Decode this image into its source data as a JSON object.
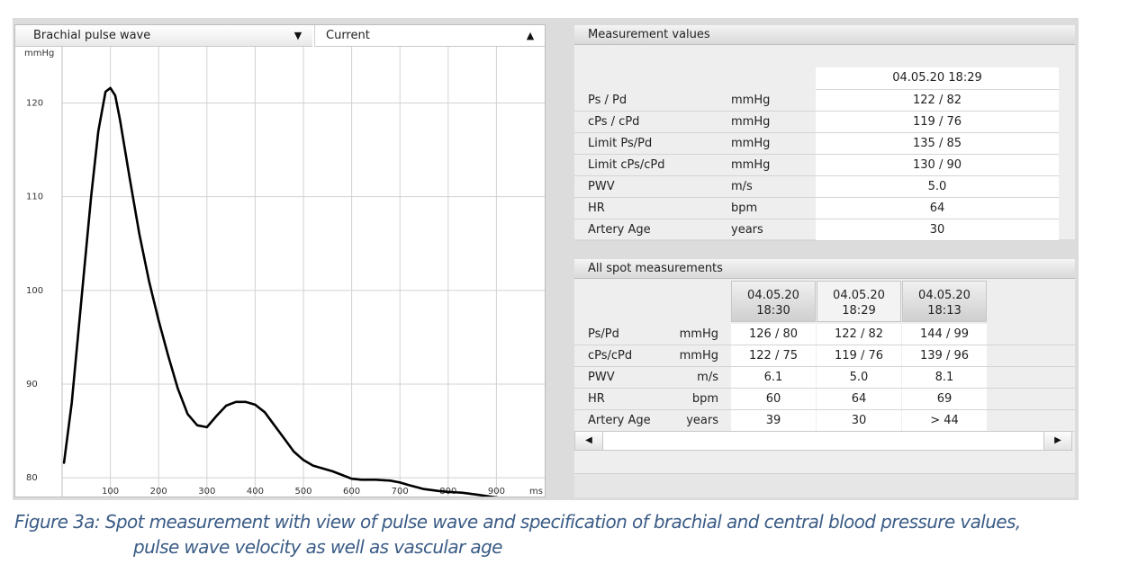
{
  "chart_panel": {
    "left_select": {
      "value": "Brachial pulse wave"
    },
    "right_select": {
      "value": "Current"
    }
  },
  "chart_data": {
    "type": "line",
    "title": "",
    "xlabel": "ms",
    "ylabel": "mmHg",
    "xlim": [
      0,
      1000
    ],
    "ylim": [
      78,
      126
    ],
    "x_ticks": [
      100,
      200,
      300,
      400,
      500,
      600,
      700,
      800,
      900
    ],
    "y_ticks": [
      80,
      90,
      100,
      110,
      120
    ],
    "grid": true,
    "series": [
      {
        "name": "",
        "color": "#000000",
        "x": [
          4,
          20,
          40,
          60,
          75,
          90,
          100,
          110,
          120,
          140,
          160,
          180,
          200,
          220,
          240,
          260,
          280,
          300,
          320,
          340,
          360,
          380,
          400,
          420,
          440,
          460,
          480,
          500,
          520,
          540,
          560,
          580,
          600,
          620,
          650,
          680,
          700,
          720,
          750,
          780,
          800,
          830,
          860,
          900,
          940,
          970,
          995
        ],
        "y": [
          81.6,
          88,
          99,
          110,
          117,
          121.2,
          121.6,
          120.8,
          118.2,
          112,
          106,
          101,
          96.8,
          93,
          89.5,
          86.8,
          85.6,
          85.4,
          86.6,
          87.7,
          88.1,
          88.1,
          87.8,
          87,
          85.6,
          84.2,
          82.8,
          81.9,
          81.3,
          81,
          80.7,
          80.3,
          79.9,
          79.8,
          79.8,
          79.7,
          79.5,
          79.2,
          78.8,
          78.6,
          78.5,
          78.4,
          78.2,
          77.9,
          77.6,
          77.4,
          77.1
        ]
      }
    ]
  },
  "measurement_values": {
    "header": "Measurement values",
    "date": "04.05.20 18:29",
    "rows": [
      {
        "label": "Ps / Pd",
        "unit": "mmHg",
        "value": "122 / 82"
      },
      {
        "label": "cPs / cPd",
        "unit": "mmHg",
        "value": "119 / 76"
      },
      {
        "label": "Limit Ps/Pd",
        "unit": "mmHg",
        "value": "135 / 85"
      },
      {
        "label": "Limit cPs/cPd",
        "unit": "mmHg",
        "value": "130 / 90"
      },
      {
        "label": "PWV",
        "unit": "m/s",
        "value": "5.0"
      },
      {
        "label": "HR",
        "unit": "bpm",
        "value": "64"
      },
      {
        "label": "Artery Age",
        "unit": "years",
        "value": "30"
      }
    ]
  },
  "spot_measurements": {
    "header": "All spot measurements",
    "columns": [
      {
        "date": "04.05.20",
        "time": "18:30"
      },
      {
        "date": "04.05.20",
        "time": "18:29"
      },
      {
        "date": "04.05.20",
        "time": "18:13"
      }
    ],
    "rows": [
      {
        "label": "Ps/Pd",
        "unit": "mmHg",
        "values": [
          "126 / 80",
          "122 / 82",
          "144 / 99"
        ]
      },
      {
        "label": "cPs/cPd",
        "unit": "mmHg",
        "values": [
          "122 / 75",
          "119 / 76",
          "139 / 96"
        ]
      },
      {
        "label": "PWV",
        "unit": "m/s",
        "values": [
          "6.1",
          "5.0",
          "8.1"
        ]
      },
      {
        "label": "HR",
        "unit": "bpm",
        "values": [
          "60",
          "64",
          "69"
        ]
      },
      {
        "label": "Artery Age",
        "unit": "years",
        "values": [
          "39",
          "30",
          "> 44"
        ]
      }
    ],
    "scroll_left_icon": "triangle-left-icon",
    "scroll_right_icon": "triangle-right-icon"
  },
  "caption": {
    "line1": "Figure 3a: Spot measurement with view of pulse wave and specification of brachial and central blood pressure values,",
    "line2": "pulse wave velocity as well as vascular age"
  }
}
